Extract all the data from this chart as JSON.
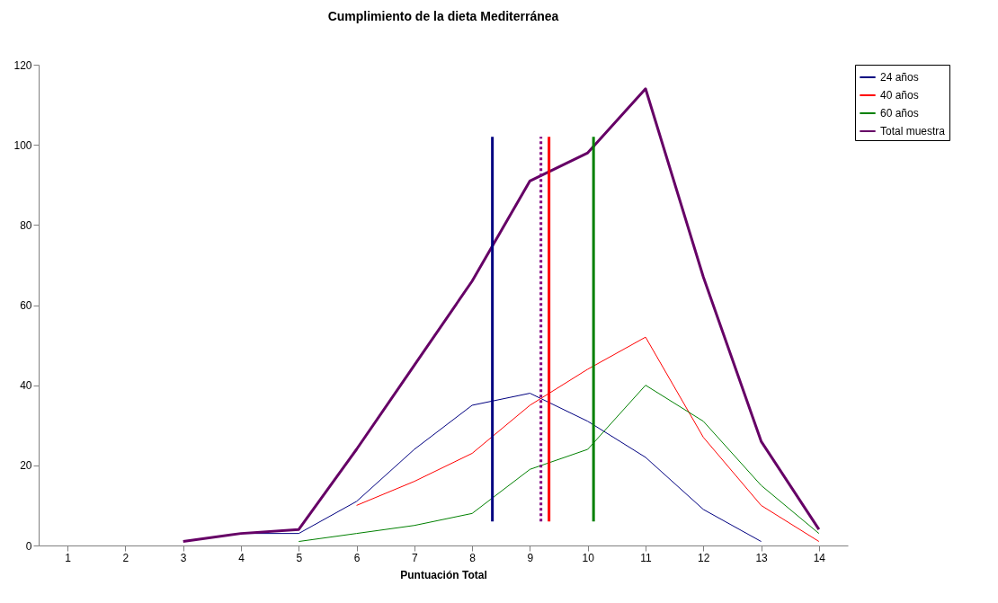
{
  "chart_data": {
    "type": "line",
    "title": "Cumplimiento de la dieta Mediterránea",
    "xlabel": "Puntuación Total",
    "x": [
      3,
      4,
      5,
      6,
      7,
      8,
      9,
      10,
      11,
      12,
      13,
      14
    ],
    "xlim": [
      0.5,
      14.5
    ],
    "xticks": [
      1,
      2,
      3,
      4,
      5,
      6,
      7,
      8,
      9,
      10,
      11,
      12,
      13,
      14
    ],
    "ylim": [
      0,
      120
    ],
    "yticks": [
      0,
      20,
      40,
      60,
      80,
      100,
      120
    ],
    "grid": false,
    "legend": "right",
    "marker": "none",
    "series": [
      {
        "name": "24 años",
        "color": "#000080",
        "values": [
          null,
          3,
          3,
          11,
          24,
          35,
          38,
          31,
          22,
          9,
          1,
          null
        ]
      },
      {
        "name": "40 años",
        "color": "#ff0000",
        "values": [
          null,
          null,
          null,
          10,
          16,
          23,
          35,
          44,
          52,
          27,
          10,
          1
        ]
      },
      {
        "name": "60 años",
        "color": "#008000",
        "values": [
          null,
          null,
          1,
          3,
          5,
          8,
          19,
          24,
          40,
          31,
          15,
          3
        ]
      },
      {
        "name": "Total muestra",
        "color": "#660066",
        "values": [
          1,
          3,
          4,
          24,
          45,
          66,
          91,
          98,
          114,
          67,
          26,
          4
        ]
      },
      {
        "type": "line",
        "color": "#000080",
        "x": [
          8.35,
          8.35
        ],
        "values": [
          6,
          102
        ]
      },
      {
        "type": "line",
        "color": "#800080",
        "line_style": "dotted",
        "x": [
          9.19,
          9.19
        ],
        "values": [
          6,
          102
        ]
      },
      {
        "type": "line",
        "color": "#ff0000",
        "x": [
          9.33,
          9.33
        ],
        "values": [
          6,
          102
        ]
      },
      {
        "type": "line",
        "color": "#008000",
        "x": [
          10.1,
          10.1
        ],
        "values": [
          6,
          102
        ]
      }
    ]
  }
}
